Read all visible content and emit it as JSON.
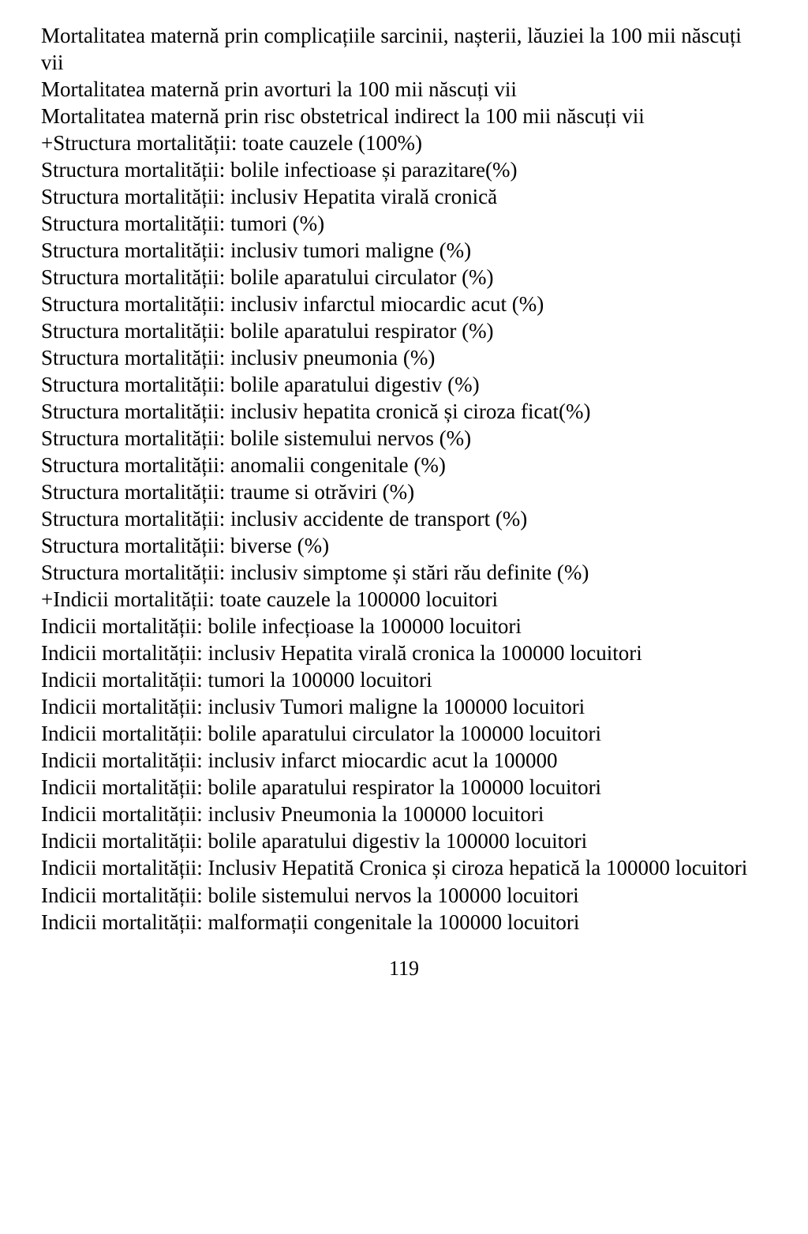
{
  "lines": [
    "Mortalitatea maternă prin complicațiile sarcinii, nașterii, lăuziei la 100 mii născuți vii",
    "Mortalitatea maternă prin avorturi la 100 mii născuți vii",
    "Mortalitatea maternă prin risc obstetrical indirect la 100 mii născuți vii",
    "+Structura mortalității: toate cauzele (100%)",
    "Structura mortalității: bolile infectioase și parazitare(%)",
    "Structura mortalității: inclusiv Hepatita virală cronică",
    "Structura mortalității: tumori (%)",
    "Structura mortalității: inclusiv tumori maligne (%)",
    "Structura mortalității: bolile aparatului circulator (%)",
    "Structura mortalității: inclusiv infarctul miocardic acut (%)",
    "Structura mortalității: bolile aparatului respirator (%)",
    "Structura mortalității: inclusiv pneumonia (%)",
    "Structura mortalității: bolile aparatului digestiv (%)",
    "Structura mortalității: inclusiv hepatita cronică și ciroza ficat(%)",
    "Structura mortalității: bolile sistemului nervos (%)",
    "Structura mortalității: anomalii congenitale (%)",
    "Structura mortalității: traume si otrăviri (%)",
    "Structura mortalității: inclusiv accidente de transport (%)",
    "Structura mortalității: biverse (%)",
    "Structura mortalității: inclusiv simptome și stări rău definite (%)",
    "+Indicii mortalității: toate cauzele la 100000 locuitori",
    "Indicii mortalității: bolile infecțioase la 100000 locuitori",
    "Indicii mortalității: inclusiv Hepatita virală cronica la 100000 locuitori",
    "Indicii mortalității: tumori la 100000 locuitori",
    "Indicii mortalității: inclusiv Tumori maligne la 100000 locuitori",
    "Indicii mortalității: bolile aparatului circulator la 100000 locuitori",
    "Indicii mortalității: inclusiv infarct miocardic acut la 100000",
    "Indicii mortalității: bolile aparatului respirator la 100000 locuitori",
    "Indicii mortalității: inclusiv Pneumonia la 100000 locuitori",
    "Indicii mortalității: bolile aparatului digestiv la 100000 locuitori",
    "Indicii mortalității: Inclusiv Hepatită Cronica și ciroza hepatică la 100000 locuitori",
    "Indicii mortalității: bolile sistemului nervos la 100000 locuitori",
    "Indicii mortalității: malformații congenitale la 100000 locuitori"
  ],
  "justifyIndices": [
    30
  ],
  "pageNumber": "119"
}
